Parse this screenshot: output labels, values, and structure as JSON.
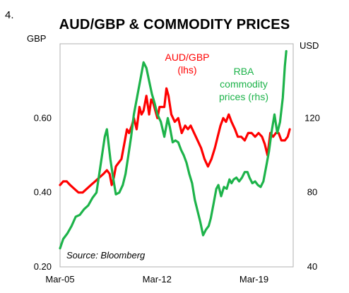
{
  "figure_number": "4.",
  "chart_data": {
    "type": "line",
    "title": "AUD/GBP & COMMODITY PRICES",
    "source": "Source: Bloomberg",
    "x_ticks": [
      "Mar-05",
      "Mar-12",
      "Mar-19"
    ],
    "x_tick_values": [
      2005.17,
      2012.17,
      2019.17
    ],
    "xlim": [
      2005.17,
      2022.0
    ],
    "left_axis": {
      "unit": "GBP",
      "ylim": [
        0.2,
        0.8
      ],
      "ticks": [
        "0.20",
        "0.40",
        "0.60"
      ],
      "tick_values": [
        0.2,
        0.4,
        0.6
      ]
    },
    "right_axis": {
      "unit": "USD",
      "ylim": [
        40,
        160
      ],
      "ticks": [
        "40",
        "80",
        "120"
      ],
      "tick_values": [
        40,
        80,
        120
      ]
    },
    "series": [
      {
        "name_lines": [
          "AUD/GBP",
          "(lhs)"
        ],
        "axis": "left",
        "color": "#ff0000",
        "points": [
          [
            2005.17,
            0.42
          ],
          [
            2005.4,
            0.43
          ],
          [
            2005.65,
            0.43
          ],
          [
            2005.9,
            0.42
          ],
          [
            2006.2,
            0.41
          ],
          [
            2006.5,
            0.4
          ],
          [
            2006.8,
            0.4
          ],
          [
            2007.1,
            0.41
          ],
          [
            2007.4,
            0.42
          ],
          [
            2007.7,
            0.43
          ],
          [
            2008.0,
            0.44
          ],
          [
            2008.3,
            0.45
          ],
          [
            2008.55,
            0.46
          ],
          [
            2008.75,
            0.45
          ],
          [
            2008.9,
            0.42
          ],
          [
            2009.05,
            0.44
          ],
          [
            2009.2,
            0.47
          ],
          [
            2009.4,
            0.48
          ],
          [
            2009.6,
            0.49
          ],
          [
            2009.85,
            0.54
          ],
          [
            2010.0,
            0.57
          ],
          [
            2010.15,
            0.56
          ],
          [
            2010.35,
            0.58
          ],
          [
            2010.5,
            0.6
          ],
          [
            2010.7,
            0.57
          ],
          [
            2010.9,
            0.63
          ],
          [
            2011.05,
            0.61
          ],
          [
            2011.2,
            0.62
          ],
          [
            2011.4,
            0.66
          ],
          [
            2011.6,
            0.61
          ],
          [
            2011.75,
            0.65
          ],
          [
            2011.9,
            0.64
          ],
          [
            2012.05,
            0.62
          ],
          [
            2012.2,
            0.6
          ],
          [
            2012.35,
            0.63
          ],
          [
            2012.5,
            0.63
          ],
          [
            2012.7,
            0.63
          ],
          [
            2012.85,
            0.68
          ],
          [
            2013.0,
            0.66
          ],
          [
            2013.2,
            0.61
          ],
          [
            2013.45,
            0.59
          ],
          [
            2013.7,
            0.6
          ],
          [
            2013.95,
            0.56
          ],
          [
            2014.2,
            0.58
          ],
          [
            2014.4,
            0.57
          ],
          [
            2014.6,
            0.58
          ],
          [
            2014.85,
            0.56
          ],
          [
            2015.1,
            0.54
          ],
          [
            2015.35,
            0.52
          ],
          [
            2015.6,
            0.49
          ],
          [
            2015.85,
            0.47
          ],
          [
            2016.1,
            0.49
          ],
          [
            2016.35,
            0.52
          ],
          [
            2016.55,
            0.55
          ],
          [
            2016.75,
            0.58
          ],
          [
            2016.95,
            0.6
          ],
          [
            2017.15,
            0.59
          ],
          [
            2017.35,
            0.61
          ],
          [
            2017.55,
            0.59
          ],
          [
            2017.8,
            0.57
          ],
          [
            2018.0,
            0.55
          ],
          [
            2018.25,
            0.55
          ],
          [
            2018.5,
            0.54
          ],
          [
            2018.75,
            0.56
          ],
          [
            2019.0,
            0.56
          ],
          [
            2019.25,
            0.55
          ],
          [
            2019.5,
            0.56
          ],
          [
            2019.75,
            0.55
          ],
          [
            2019.95,
            0.53
          ],
          [
            2020.15,
            0.5
          ],
          [
            2020.35,
            0.56
          ],
          [
            2020.55,
            0.55
          ],
          [
            2020.75,
            0.56
          ],
          [
            2020.95,
            0.56
          ],
          [
            2021.15,
            0.54
          ],
          [
            2021.4,
            0.54
          ],
          [
            2021.6,
            0.55
          ],
          [
            2021.75,
            0.57
          ]
        ]
      },
      {
        "name_lines": [
          "RBA",
          "commodity",
          "prices (rhs)"
        ],
        "axis": "right",
        "color": "#1db34a",
        "points": [
          [
            2005.17,
            50
          ],
          [
            2005.4,
            55
          ],
          [
            2005.7,
            58
          ],
          [
            2006.0,
            62
          ],
          [
            2006.3,
            67
          ],
          [
            2006.6,
            68
          ],
          [
            2006.9,
            71
          ],
          [
            2007.2,
            73
          ],
          [
            2007.5,
            77
          ],
          [
            2007.8,
            80
          ],
          [
            2008.0,
            90
          ],
          [
            2008.2,
            100
          ],
          [
            2008.4,
            110
          ],
          [
            2008.55,
            114
          ],
          [
            2008.8,
            98
          ],
          [
            2009.0,
            88
          ],
          [
            2009.2,
            79
          ],
          [
            2009.45,
            80
          ],
          [
            2009.7,
            84
          ],
          [
            2009.9,
            90
          ],
          [
            2010.1,
            100
          ],
          [
            2010.3,
            110
          ],
          [
            2010.5,
            122
          ],
          [
            2010.75,
            132
          ],
          [
            2011.0,
            142
          ],
          [
            2011.2,
            150
          ],
          [
            2011.4,
            147
          ],
          [
            2011.6,
            140
          ],
          [
            2011.8,
            133
          ],
          [
            2012.0,
            128
          ],
          [
            2012.2,
            122
          ],
          [
            2012.45,
            118
          ],
          [
            2012.7,
            110
          ],
          [
            2012.95,
            120
          ],
          [
            2013.1,
            115
          ],
          [
            2013.3,
            107
          ],
          [
            2013.5,
            108
          ],
          [
            2013.7,
            107
          ],
          [
            2013.9,
            103
          ],
          [
            2014.1,
            100
          ],
          [
            2014.3,
            96
          ],
          [
            2014.5,
            90
          ],
          [
            2014.7,
            85
          ],
          [
            2014.9,
            76
          ],
          [
            2015.1,
            70
          ],
          [
            2015.3,
            64
          ],
          [
            2015.5,
            57
          ],
          [
            2015.7,
            60
          ],
          [
            2015.9,
            62
          ],
          [
            2016.05,
            66
          ],
          [
            2016.25,
            74
          ],
          [
            2016.45,
            82
          ],
          [
            2016.6,
            84
          ],
          [
            2016.8,
            78
          ],
          [
            2017.0,
            83
          ],
          [
            2017.2,
            82
          ],
          [
            2017.4,
            87
          ],
          [
            2017.55,
            85
          ],
          [
            2017.7,
            87
          ],
          [
            2017.9,
            88
          ],
          [
            2018.1,
            86
          ],
          [
            2018.3,
            88
          ],
          [
            2018.5,
            91
          ],
          [
            2018.7,
            91
          ],
          [
            2018.85,
            88
          ],
          [
            2019.05,
            85
          ],
          [
            2019.25,
            86
          ],
          [
            2019.45,
            84
          ],
          [
            2019.65,
            83
          ],
          [
            2019.85,
            86
          ],
          [
            2020.05,
            94
          ],
          [
            2020.25,
            102
          ],
          [
            2020.45,
            113
          ],
          [
            2020.65,
            122
          ],
          [
            2020.85,
            112
          ],
          [
            2021.05,
            118
          ],
          [
            2021.25,
            131
          ],
          [
            2021.4,
            148
          ],
          [
            2021.5,
            156
          ]
        ]
      }
    ]
  }
}
